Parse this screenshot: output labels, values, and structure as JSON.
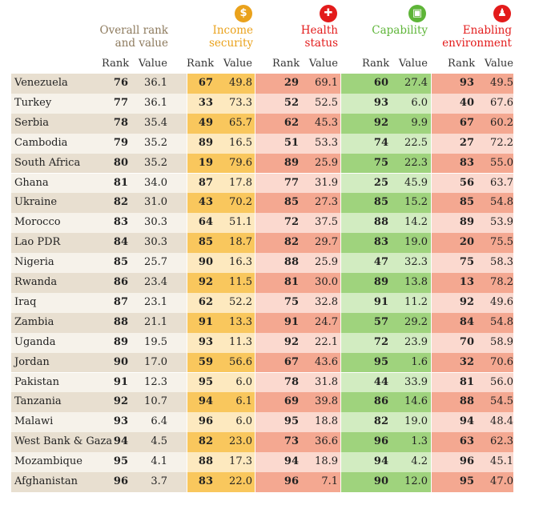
{
  "headers": {
    "overall": [
      "Overall rank",
      "and value"
    ],
    "income": [
      "Income",
      "security"
    ],
    "health": [
      "Health",
      "status"
    ],
    "capability": [
      "Capability"
    ],
    "environment": [
      "Enabling",
      "environment"
    ],
    "rank_label": "Rank",
    "value_label": "Value"
  },
  "icons": {
    "income": {
      "name": "dollar-coin-icon",
      "glyph": "$",
      "color": "#eaa21c"
    },
    "health": {
      "name": "medical-cross-icon",
      "glyph": "✚",
      "color": "#e31b1b"
    },
    "capability": {
      "name": "briefcase-icon",
      "glyph": "▣",
      "color": "#5eb538"
    },
    "environment": {
      "name": "people-group-icon",
      "glyph": "♟",
      "color": "#e31b1b"
    }
  },
  "colors": {
    "overall_even": "#e8dfd0",
    "overall_odd": "#f6f2ea",
    "income_even": "#f9c75d",
    "income_odd": "#fde9bf",
    "health_even": "#f4a891",
    "health_odd": "#fbd9cf",
    "capability_even": "#9fd37d",
    "capability_odd": "#d2ecc1",
    "environment_even": "#f4a891",
    "environment_odd": "#fbd9cf"
  },
  "chart_data": {
    "type": "table",
    "columns": [
      "Country",
      "Overall rank",
      "Overall value",
      "Income security rank",
      "Income security value",
      "Health status rank",
      "Health status value",
      "Capability rank",
      "Capability value",
      "Enabling environment rank",
      "Enabling environment value"
    ],
    "rows": [
      [
        "Venezuela",
        76,
        "36.1",
        67,
        "49.8",
        29,
        "69.1",
        60,
        "27.4",
        93,
        "49.5"
      ],
      [
        "Turkey",
        77,
        "36.1",
        33,
        "73.3",
        52,
        "52.5",
        93,
        "6.0",
        40,
        "67.6"
      ],
      [
        "Serbia",
        78,
        "35.4",
        49,
        "65.7",
        62,
        "45.3",
        92,
        "9.9",
        67,
        "60.2"
      ],
      [
        "Cambodia",
        79,
        "35.2",
        89,
        "16.5",
        51,
        "53.3",
        74,
        "22.5",
        27,
        "72.2"
      ],
      [
        "South Africa",
        80,
        "35.2",
        19,
        "79.6",
        89,
        "25.9",
        75,
        "22.3",
        83,
        "55.0"
      ],
      [
        "Ghana",
        81,
        "34.0",
        87,
        "17.8",
        77,
        "31.9",
        25,
        "45.9",
        56,
        "63.7"
      ],
      [
        "Ukraine",
        82,
        "31.0",
        43,
        "70.2",
        85,
        "27.3",
        85,
        "15.2",
        85,
        "54.8"
      ],
      [
        "Morocco",
        83,
        "30.3",
        64,
        "51.1",
        72,
        "37.5",
        88,
        "14.2",
        89,
        "53.9"
      ],
      [
        "Lao PDR",
        84,
        "30.3",
        85,
        "18.7",
        82,
        "29.7",
        83,
        "19.0",
        20,
        "75.5"
      ],
      [
        "Nigeria",
        85,
        "25.7",
        90,
        "16.3",
        88,
        "25.9",
        47,
        "32.3",
        75,
        "58.3"
      ],
      [
        "Rwanda",
        86,
        "23.4",
        92,
        "11.5",
        81,
        "30.0",
        89,
        "13.8",
        13,
        "78.2"
      ],
      [
        "Iraq",
        87,
        "23.1",
        62,
        "52.2",
        75,
        "32.8",
        91,
        "11.2",
        92,
        "49.6"
      ],
      [
        "Zambia",
        88,
        "21.1",
        91,
        "13.3",
        91,
        "24.7",
        57,
        "29.2",
        84,
        "54.8"
      ],
      [
        "Uganda",
        89,
        "19.5",
        93,
        "11.3",
        92,
        "22.1",
        72,
        "23.9",
        70,
        "58.9"
      ],
      [
        "Jordan",
        90,
        "17.0",
        59,
        "56.6",
        67,
        "43.6",
        95,
        "1.6",
        32,
        "70.6"
      ],
      [
        "Pakistan",
        91,
        "12.3",
        95,
        "6.0",
        78,
        "31.8",
        44,
        "33.9",
        81,
        "56.0"
      ],
      [
        "Tanzania",
        92,
        "10.7",
        94,
        "6.1",
        69,
        "39.8",
        86,
        "14.6",
        88,
        "54.5"
      ],
      [
        "Malawi",
        93,
        "6.4",
        96,
        "6.0",
        95,
        "18.8",
        82,
        "19.0",
        94,
        "48.4"
      ],
      [
        "West Bank & Gaza",
        94,
        "4.5",
        82,
        "23.0",
        73,
        "36.6",
        96,
        "1.3",
        63,
        "62.3"
      ],
      [
        "Mozambique",
        95,
        "4.1",
        88,
        "17.3",
        94,
        "18.9",
        94,
        "4.2",
        96,
        "45.1"
      ],
      [
        "Afghanistan",
        96,
        "3.7",
        83,
        "22.0",
        96,
        "7.1",
        90,
        "12.0",
        95,
        "47.0"
      ]
    ]
  }
}
